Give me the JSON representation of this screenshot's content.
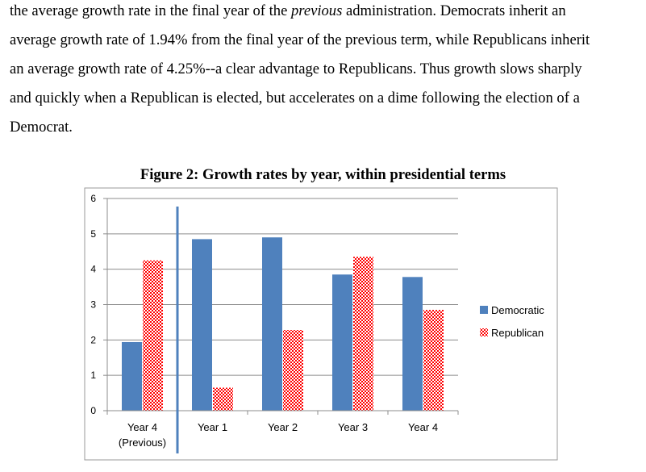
{
  "text": {
    "lines": [
      {
        "parts": [
          {
            "t": "the average growth rate in the final year of the ",
            "i": false
          },
          {
            "t": "previous",
            "i": true
          },
          {
            "t": " administration.  Democrats inherit an",
            "i": false
          }
        ]
      },
      {
        "parts": [
          {
            "t": "average growth rate of 1.94% from the final year of the previous term, while Republicans inherit",
            "i": false
          }
        ]
      },
      {
        "parts": [
          {
            "t": "an average growth rate of 4.25%--a clear advantage to Republicans.  Thus growth slows sharply",
            "i": false
          }
        ]
      },
      {
        "parts": [
          {
            "t": "and quickly when a Republican is elected, but accelerates on a dime following the election of a",
            "i": false
          }
        ]
      },
      {
        "parts": [
          {
            "t": "Democrat.",
            "i": false
          }
        ]
      }
    ]
  },
  "figure": {
    "title": "Figure 2: Growth rates by year, within presidential terms"
  },
  "chart_data": {
    "type": "bar",
    "title": "",
    "xlabel": "",
    "ylabel": "",
    "categories": [
      [
        "Year 4",
        "(Previous)"
      ],
      [
        "Year 1"
      ],
      [
        "Year 2"
      ],
      [
        "Year 3"
      ],
      [
        "Year 4"
      ]
    ],
    "series": [
      {
        "name": "Democratic",
        "values": [
          1.94,
          4.85,
          4.9,
          3.85,
          3.78
        ],
        "color": "#4f81bd",
        "pattern": "solid"
      },
      {
        "name": "Republican",
        "values": [
          4.25,
          0.65,
          2.28,
          4.35,
          2.85
        ],
        "color": "#ff0000",
        "pattern": "checker"
      }
    ],
    "ylim": [
      0,
      6
    ],
    "yticks": [
      0,
      1,
      2,
      3,
      4,
      5,
      6
    ],
    "grid": true,
    "legend": "right",
    "divider_after_category": 0,
    "divider_color": "#4f81bd"
  }
}
